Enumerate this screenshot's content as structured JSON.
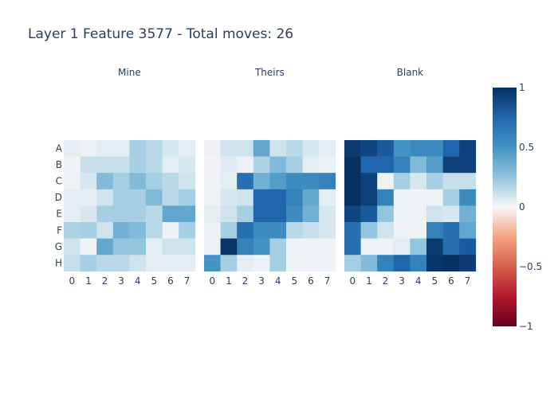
{
  "title": "Layer 1 Feature 3577 - Total moves: 26",
  "chart_data": {
    "type": "heatmap",
    "title": "Layer 1 Feature 3577 - Total moves: 26",
    "rows": [
      "A",
      "B",
      "C",
      "D",
      "E",
      "F",
      "G",
      "H"
    ],
    "columns": [
      "0",
      "1",
      "2",
      "3",
      "4",
      "5",
      "6",
      "7"
    ],
    "colorscale": "RdBu",
    "zlim": [
      -1,
      1
    ],
    "colorbar_ticks": [
      "1",
      "0.5",
      "0",
      "−0.5",
      "−1"
    ],
    "panels": [
      {
        "name": "Mine",
        "values": [
          [
            0.05,
            0.03,
            0.05,
            0.05,
            0.2,
            0.15,
            0.08,
            0.05
          ],
          [
            0.02,
            0.12,
            0.12,
            0.12,
            0.2,
            0.15,
            0.05,
            0.08
          ],
          [
            0.02,
            0.08,
            0.3,
            0.2,
            0.3,
            0.2,
            0.15,
            0.1
          ],
          [
            0.05,
            0.05,
            0.1,
            0.2,
            0.2,
            0.3,
            0.15,
            0.2
          ],
          [
            0.05,
            0.08,
            0.2,
            0.2,
            0.2,
            0.15,
            0.4,
            0.4
          ],
          [
            0.18,
            0.2,
            0.1,
            0.35,
            0.3,
            0.15,
            0.03,
            0.2
          ],
          [
            0.1,
            0.02,
            0.4,
            0.25,
            0.25,
            0.05,
            0.1,
            0.1
          ],
          [
            0.12,
            0.2,
            0.15,
            0.15,
            0.1,
            0.05,
            0.05,
            0.05
          ]
        ]
      },
      {
        "name": "Theirs",
        "values": [
          [
            0.03,
            0.1,
            0.1,
            0.4,
            0.1,
            0.15,
            0.08,
            0.05
          ],
          [
            0.02,
            0.06,
            0.03,
            0.18,
            0.3,
            0.2,
            0.05,
            0.03
          ],
          [
            0.02,
            0.05,
            0.7,
            0.35,
            0.45,
            0.55,
            0.55,
            0.6
          ],
          [
            0.02,
            0.08,
            0.1,
            0.75,
            0.75,
            0.6,
            0.4,
            0.05
          ],
          [
            0.05,
            0.1,
            0.2,
            0.75,
            0.75,
            0.55,
            0.35,
            0.08
          ],
          [
            0.03,
            0.2,
            0.7,
            0.55,
            0.55,
            0.15,
            0.12,
            0.08
          ],
          [
            0.03,
            0.98,
            0.6,
            0.5,
            0.2,
            0.02,
            0.02,
            0.02
          ],
          [
            0.5,
            0.2,
            0.05,
            0.03,
            0.2,
            0.02,
            0.02,
            0.02
          ]
        ]
      },
      {
        "name": "Blank",
        "values": [
          [
            0.95,
            0.9,
            0.8,
            0.5,
            0.55,
            0.55,
            0.75,
            0.92
          ],
          [
            1.0,
            0.75,
            0.75,
            0.6,
            0.3,
            0.45,
            0.92,
            0.92
          ],
          [
            1.0,
            0.92,
            0.02,
            0.2,
            0.08,
            0.2,
            0.12,
            0.12
          ],
          [
            1.0,
            0.92,
            0.6,
            0.02,
            0.02,
            0.02,
            0.2,
            0.55
          ],
          [
            0.9,
            0.8,
            0.25,
            0.02,
            0.02,
            0.1,
            0.08,
            0.35
          ],
          [
            0.7,
            0.25,
            0.1,
            0.02,
            0.02,
            0.6,
            0.7,
            0.4
          ],
          [
            0.7,
            0.02,
            0.02,
            0.05,
            0.25,
            0.95,
            0.7,
            0.8
          ],
          [
            0.2,
            0.3,
            0.6,
            0.75,
            0.6,
            0.98,
            1.0,
            0.95
          ]
        ]
      }
    ]
  }
}
